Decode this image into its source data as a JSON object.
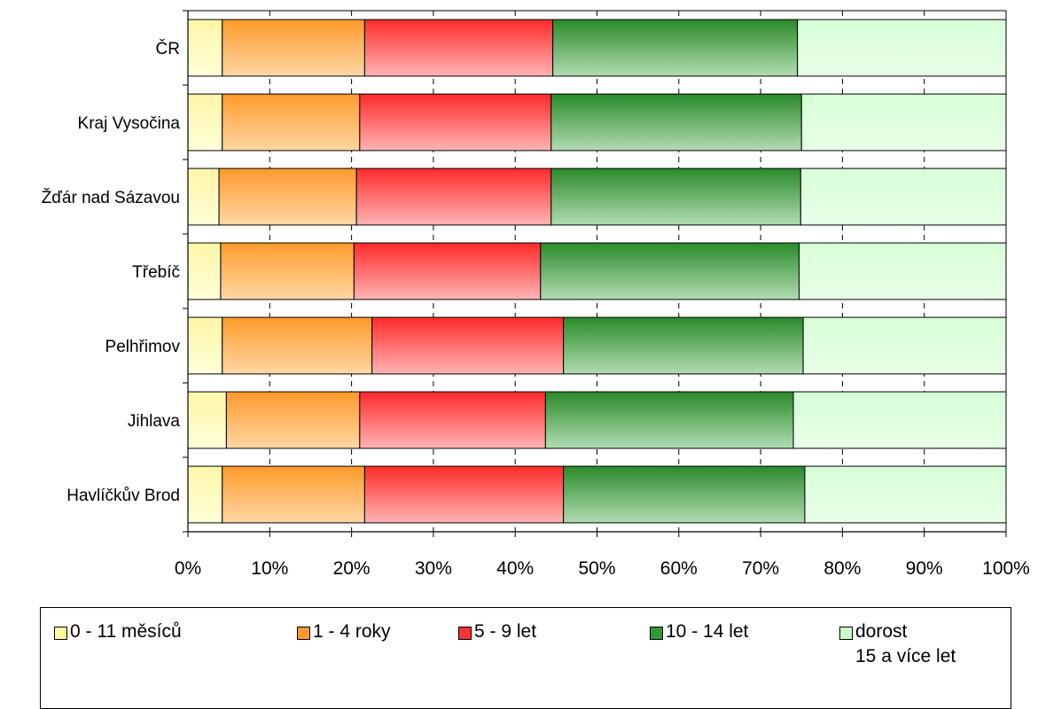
{
  "chart_data": {
    "type": "bar",
    "orientation": "horizontal",
    "stacked": "percent",
    "categories": [
      "ČR",
      "Kraj Vysočina",
      "Žďár nad Sázavou",
      "Třebíč",
      "Pelhřimov",
      "Jihlava",
      "Havlíčkův Brod"
    ],
    "series": [
      {
        "name": "0 - 11 měsíců",
        "color": "#ffff99",
        "values": [
          4.2,
          4.2,
          3.8,
          4.0,
          4.2,
          4.7,
          4.2
        ]
      },
      {
        "name": "1 - 4 roky",
        "color": "#ff9933",
        "values": [
          17.4,
          16.8,
          16.8,
          16.3,
          18.3,
          16.3,
          17.4
        ]
      },
      {
        "name": "5 - 9 let",
        "color": "#ff3333",
        "values": [
          23.0,
          23.4,
          23.8,
          22.8,
          23.4,
          22.7,
          24.3
        ]
      },
      {
        "name": "10 - 14 let",
        "color": "#339933",
        "values": [
          29.9,
          30.6,
          30.5,
          31.6,
          29.3,
          30.3,
          29.5
        ]
      },
      {
        "name": "dorost 15 a více let",
        "color": "#ccffcc",
        "values": [
          25.5,
          25.0,
          25.1,
          25.3,
          24.8,
          26.0,
          24.6
        ]
      }
    ],
    "x_ticks": [
      "0%",
      "10%",
      "20%",
      "30%",
      "40%",
      "50%",
      "60%",
      "70%",
      "80%",
      "90%",
      "100%"
    ],
    "xlim": [
      0,
      100
    ],
    "grid": "vertical dashed",
    "legend_position": "bottom"
  },
  "legend": {
    "items": [
      {
        "line1": "0 - 11 měsíců",
        "line2": ""
      },
      {
        "line1": "1 - 4 roky",
        "line2": ""
      },
      {
        "line1": "5 - 9 let",
        "line2": ""
      },
      {
        "line1": "10 - 14 let",
        "line2": ""
      },
      {
        "line1": "dorost",
        "line2": "15 a více let"
      }
    ]
  }
}
